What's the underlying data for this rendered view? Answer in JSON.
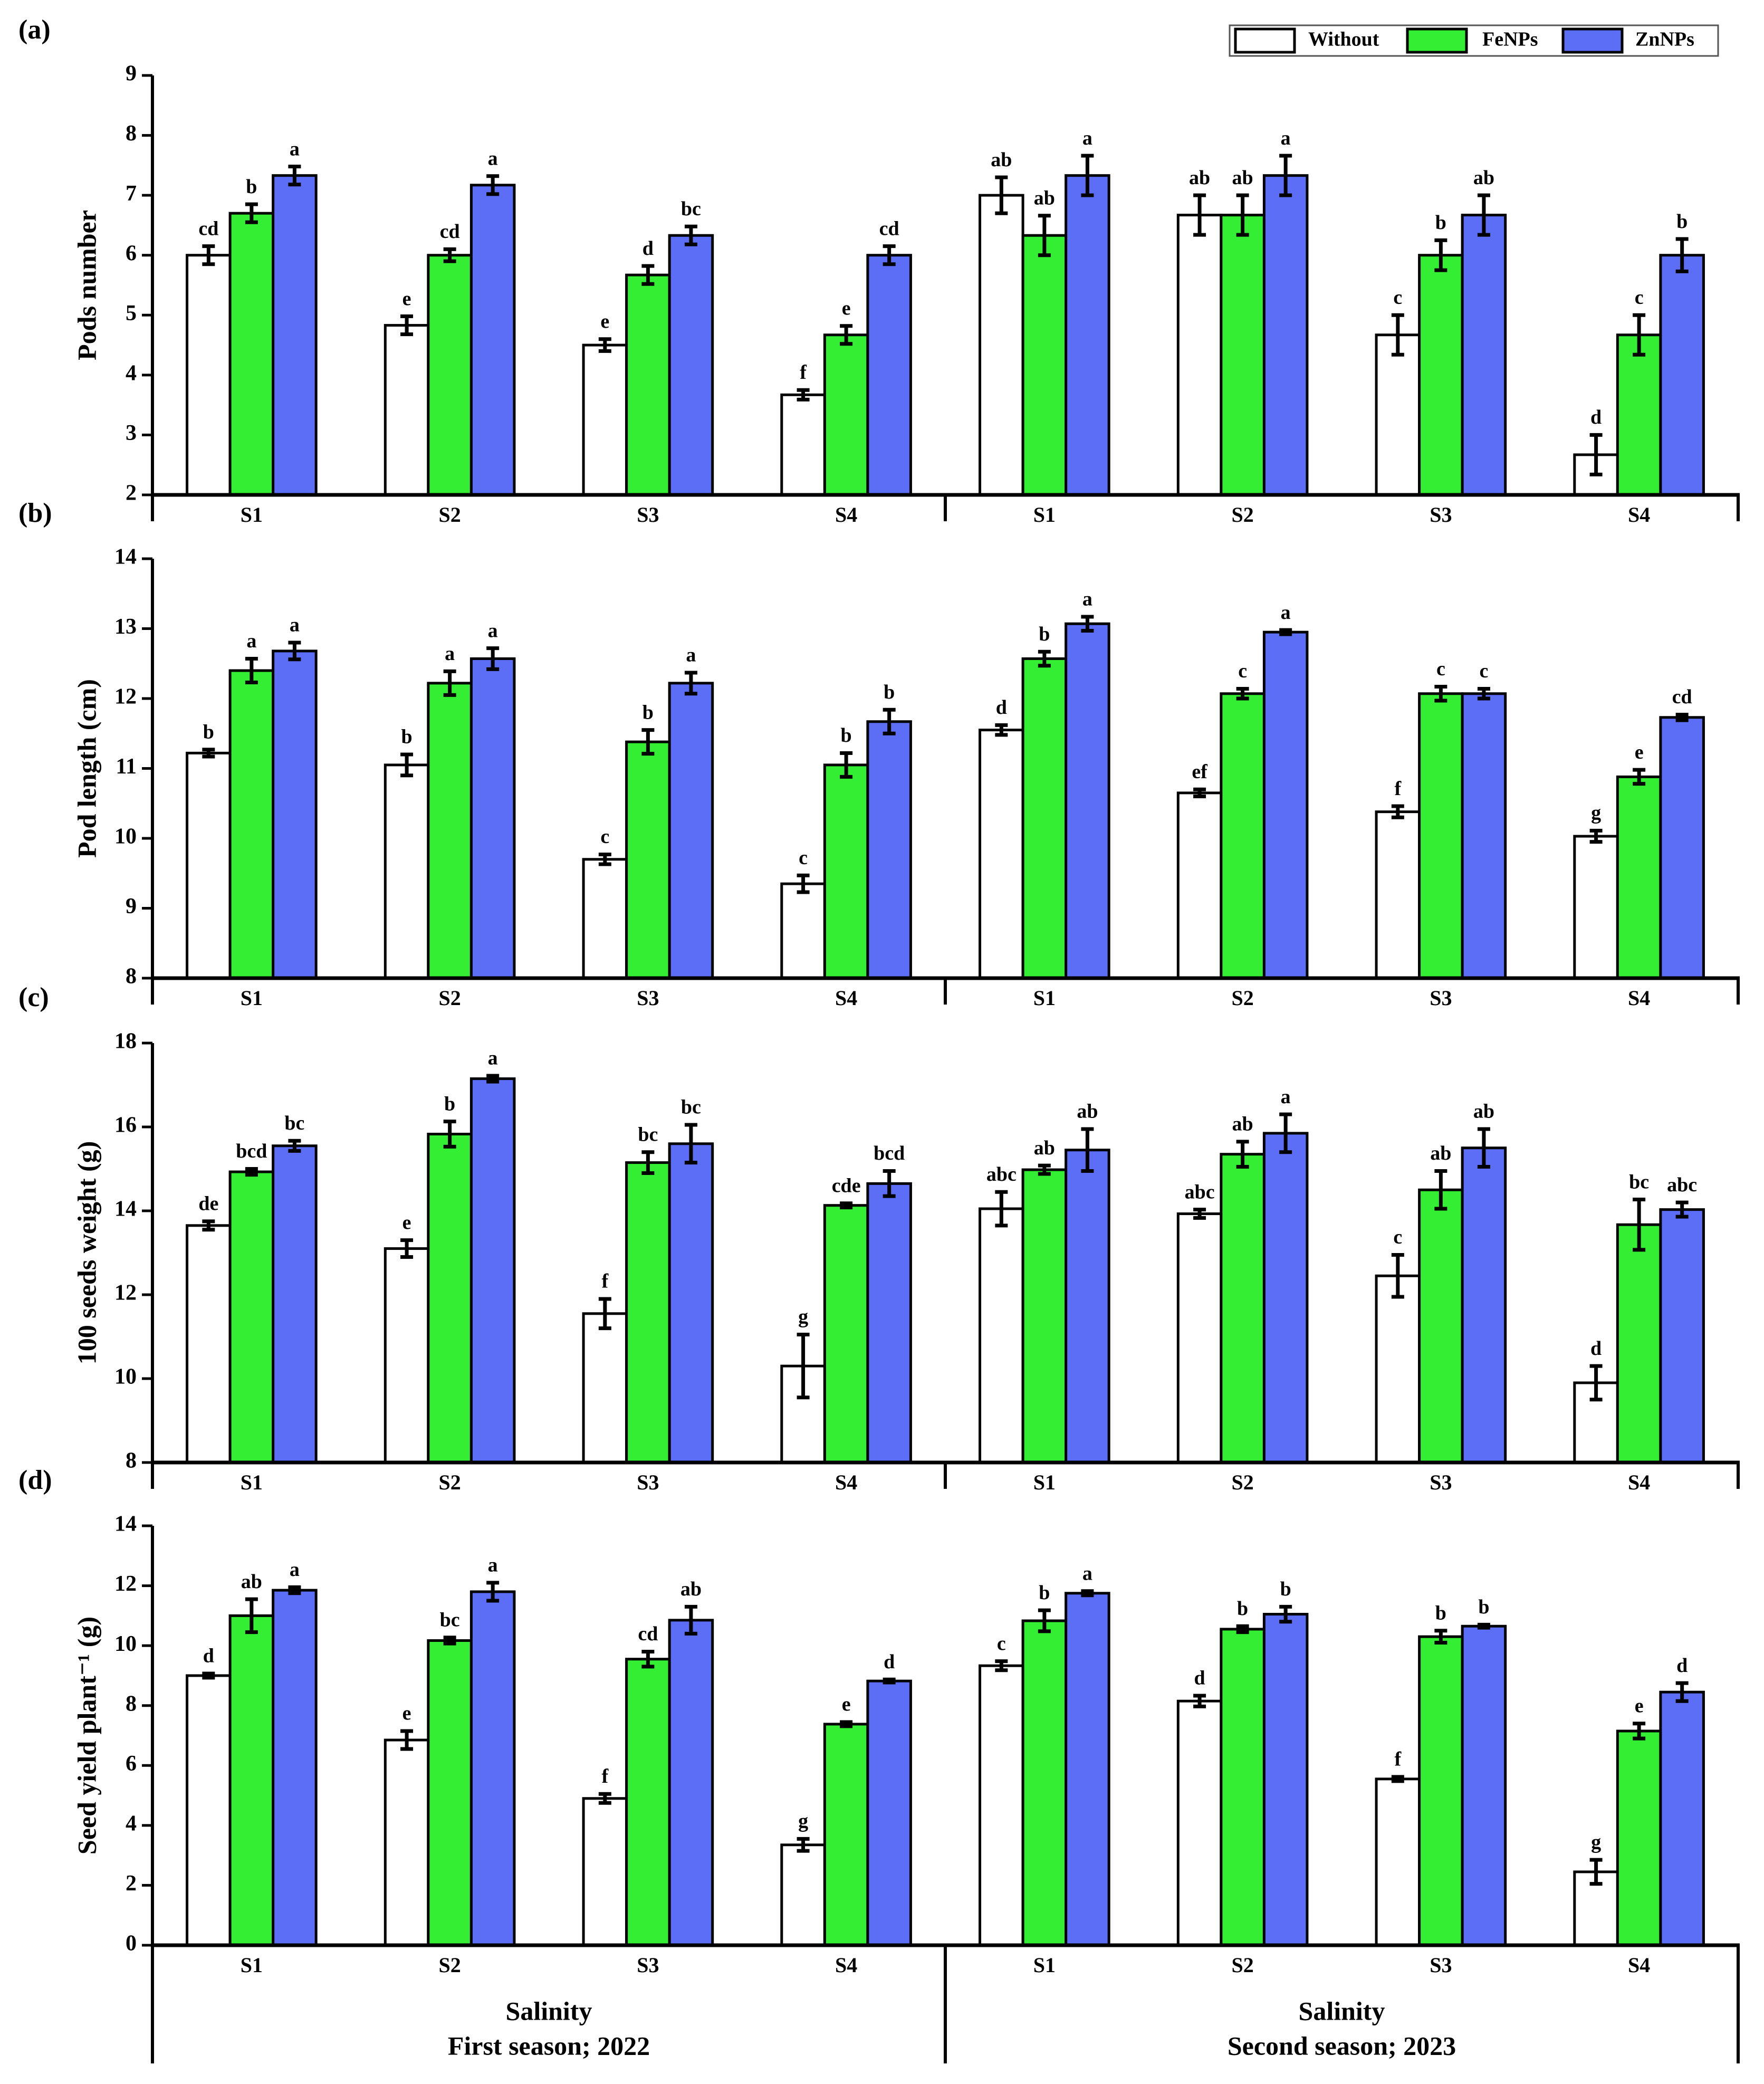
{
  "chart_data": [
    {
      "type": "bar",
      "panel": "(a)",
      "y_label": "Pods number",
      "categories": [
        "S1",
        "S2",
        "S3",
        "S4",
        "S1",
        "S2",
        "S3",
        "S4"
      ],
      "ylim": [
        2,
        9
      ],
      "yticks": [
        2,
        3,
        4,
        5,
        6,
        7,
        8,
        9
      ],
      "series": [
        {
          "name": "Without",
          "color": "#ffffff",
          "values": [
            6.0,
            4.83,
            4.5,
            3.67,
            7.0,
            6.67,
            4.67,
            2.67
          ],
          "errors": [
            0.15,
            0.15,
            0.1,
            0.08,
            0.3,
            0.33,
            0.33,
            0.33
          ],
          "letters": [
            "cd",
            "e",
            "e",
            "f",
            "ab",
            "ab",
            "c",
            "d"
          ]
        },
        {
          "name": "FeNPs",
          "color": "#33ee33",
          "values": [
            6.7,
            6.0,
            5.67,
            4.67,
            6.33,
            6.67,
            6.0,
            4.67
          ],
          "errors": [
            0.15,
            0.1,
            0.15,
            0.15,
            0.33,
            0.33,
            0.25,
            0.33
          ],
          "letters": [
            "b",
            "cd",
            "d",
            "e",
            "ab",
            "ab",
            "b",
            "c"
          ]
        },
        {
          "name": "ZnNPs",
          "color": "#5b6ef5",
          "values": [
            7.33,
            7.17,
            6.33,
            6.0,
            7.33,
            7.33,
            6.67,
            6.0
          ],
          "errors": [
            0.15,
            0.15,
            0.15,
            0.15,
            0.33,
            0.33,
            0.33,
            0.27
          ],
          "letters": [
            "a",
            "a",
            "bc",
            "cd",
            "a",
            "a",
            "ab",
            "b"
          ]
        }
      ]
    },
    {
      "type": "bar",
      "panel": "(b)",
      "y_label": "Pod length (cm)",
      "categories": [
        "S1",
        "S2",
        "S3",
        "S4",
        "S1",
        "S2",
        "S3",
        "S4"
      ],
      "ylim": [
        8,
        14
      ],
      "yticks": [
        8,
        9,
        10,
        11,
        12,
        13,
        14
      ],
      "series": [
        {
          "color": "#ffffff",
          "values": [
            11.22,
            11.05,
            9.7,
            9.35,
            11.55,
            10.65,
            10.38,
            10.03
          ],
          "errors": [
            0.05,
            0.15,
            0.07,
            0.12,
            0.07,
            0.05,
            0.08,
            0.08
          ],
          "letters": [
            "b",
            "b",
            "c",
            "c",
            "d",
            "ef",
            "f",
            "g"
          ]
        },
        {
          "color": "#33ee33",
          "values": [
            12.4,
            12.22,
            11.38,
            11.05,
            12.57,
            12.07,
            12.07,
            10.88
          ],
          "errors": [
            0.17,
            0.17,
            0.17,
            0.17,
            0.1,
            0.07,
            0.1,
            0.1
          ],
          "letters": [
            "a",
            "a",
            "b",
            "b",
            "b",
            "c",
            "c",
            "e"
          ]
        },
        {
          "color": "#5b6ef5",
          "values": [
            12.68,
            12.57,
            12.22,
            11.67,
            13.07,
            12.95,
            12.07,
            11.73
          ],
          "errors": [
            0.12,
            0.15,
            0.15,
            0.17,
            0.1,
            0.03,
            0.07,
            0.04
          ],
          "letters": [
            "a",
            "a",
            "a",
            "b",
            "a",
            "a",
            "c",
            "cd"
          ]
        }
      ]
    },
    {
      "type": "bar",
      "panel": "(c)",
      "y_label": "100 seeds weight (g)",
      "categories": [
        "S1",
        "S2",
        "S3",
        "S4",
        "S1",
        "S2",
        "S3",
        "S4"
      ],
      "ylim": [
        8,
        18
      ],
      "yticks": [
        8,
        10,
        12,
        14,
        16,
        18
      ],
      "series": [
        {
          "color": "#ffffff",
          "values": [
            13.65,
            13.1,
            11.55,
            10.3,
            14.05,
            13.93,
            12.45,
            9.9
          ],
          "errors": [
            0.1,
            0.2,
            0.35,
            0.75,
            0.4,
            0.1,
            0.5,
            0.4
          ],
          "letters": [
            "de",
            "e",
            "f",
            "g",
            "abc",
            "abc",
            "c",
            "d"
          ]
        },
        {
          "color": "#33ee33",
          "values": [
            14.93,
            15.83,
            15.15,
            14.13,
            14.98,
            15.35,
            14.5,
            13.67
          ],
          "errors": [
            0.07,
            0.3,
            0.25,
            0.05,
            0.1,
            0.3,
            0.45,
            0.6
          ],
          "letters": [
            "bcd",
            "b",
            "bc",
            "cde",
            "ab",
            "ab",
            "ab",
            "bc"
          ]
        },
        {
          "color": "#5b6ef5",
          "values": [
            15.55,
            17.15,
            15.6,
            14.65,
            15.45,
            15.85,
            15.5,
            14.03
          ],
          "errors": [
            0.12,
            0.07,
            0.45,
            0.3,
            0.5,
            0.45,
            0.45,
            0.17
          ],
          "letters": [
            "bc",
            "a",
            "bc",
            "bcd",
            "ab",
            "a",
            "ab",
            "abc"
          ]
        }
      ]
    },
    {
      "type": "bar",
      "panel": "(d)",
      "y_label": "Seed yield plant⁻¹ (g)",
      "categories": [
        "S1",
        "S2",
        "S3",
        "S4",
        "S1",
        "S2",
        "S3",
        "S4"
      ],
      "ylim": [
        0,
        14
      ],
      "yticks": [
        0,
        2,
        4,
        6,
        8,
        10,
        12,
        14
      ],
      "series": [
        {
          "color": "#ffffff",
          "values": [
            9.0,
            6.85,
            4.9,
            3.35,
            9.33,
            8.15,
            5.55,
            2.45
          ],
          "errors": [
            0.07,
            0.3,
            0.15,
            0.2,
            0.15,
            0.18,
            0.07,
            0.4
          ],
          "letters": [
            "d",
            "e",
            "f",
            "g",
            "c",
            "d",
            "f",
            "g"
          ]
        },
        {
          "color": "#33ee33",
          "values": [
            11.0,
            10.17,
            9.55,
            7.38,
            10.83,
            10.55,
            10.3,
            7.15
          ],
          "errors": [
            0.55,
            0.1,
            0.25,
            0.07,
            0.35,
            0.1,
            0.2,
            0.25
          ],
          "letters": [
            "ab",
            "bc",
            "cd",
            "e",
            "b",
            "b",
            "b",
            "e"
          ]
        },
        {
          "color": "#5b6ef5",
          "values": [
            11.85,
            11.8,
            10.85,
            8.82,
            11.75,
            11.05,
            10.65,
            8.45
          ],
          "errors": [
            0.1,
            0.3,
            0.45,
            0.05,
            0.07,
            0.25,
            0.05,
            0.3
          ],
          "letters": [
            "a",
            "a",
            "ab",
            "d",
            "a",
            "b",
            "b",
            "d"
          ]
        }
      ],
      "x_groups": [
        {
          "title": "Salinity",
          "subtitle": "First season; 2022"
        },
        {
          "title": "Salinity",
          "subtitle": "Second season; 2023"
        }
      ]
    }
  ]
}
